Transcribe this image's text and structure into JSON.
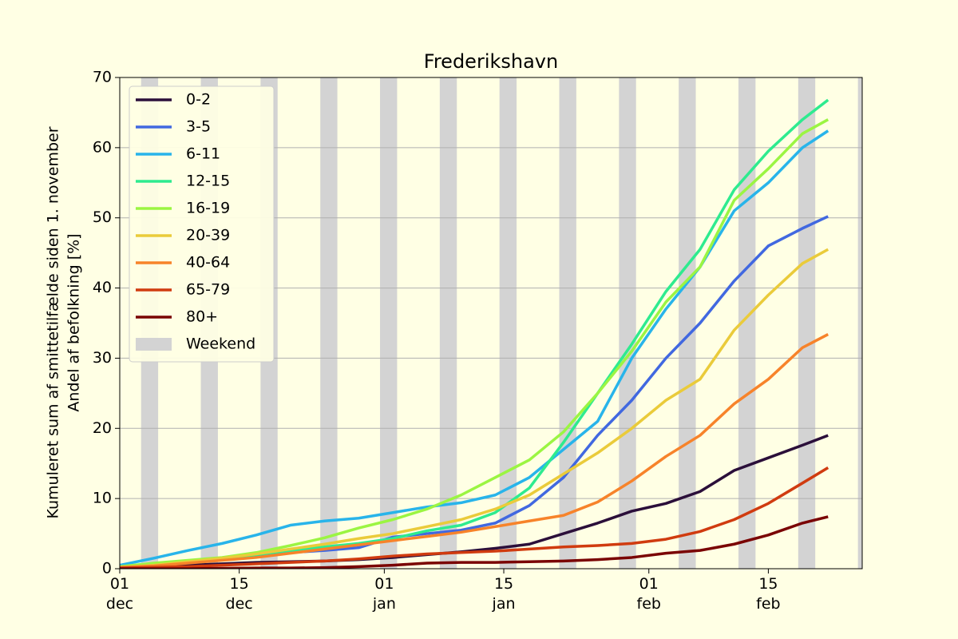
{
  "chart_data": {
    "type": "line",
    "title": "Frederikshavn",
    "ylabel": [
      "Kumuleret sum af smittetilfælde siden 1. november",
      "Andel af befolkning [%]"
    ],
    "x": [
      "12-01",
      "12-05",
      "12-09",
      "12-13",
      "12-17",
      "12-21",
      "12-25",
      "12-29",
      "01-02",
      "01-06",
      "01-10",
      "01-14",
      "01-18",
      "01-22",
      "01-26",
      "01-30",
      "02-03",
      "02-07",
      "02-11",
      "02-15",
      "02-19",
      "02-22"
    ],
    "series": [
      {
        "name": "0-2",
        "color": "#2b0f3a",
        "values": [
          0.1,
          0.3,
          0.5,
          0.7,
          0.9,
          1,
          1.1,
          1.3,
          1.6,
          2,
          2.4,
          2.9,
          3.5,
          5,
          6.5,
          8.2,
          9.3,
          11,
          14,
          15.8,
          17.6,
          19
        ]
      },
      {
        "name": "3-5",
        "color": "#4168e0",
        "values": [
          0.3,
          0.6,
          0.9,
          1.3,
          1.8,
          2.3,
          2.6,
          3,
          4.5,
          5,
          5.5,
          6.5,
          9,
          13,
          19,
          24,
          30,
          35,
          41,
          46,
          48.5,
          50.2
        ]
      },
      {
        "name": "6-11",
        "color": "#28b4ea",
        "values": [
          0.5,
          1.5,
          2.6,
          3.6,
          4.8,
          6.2,
          6.8,
          7.2,
          8,
          8.8,
          9.4,
          10.5,
          13,
          17,
          21,
          30,
          37,
          43,
          51,
          55,
          60,
          62.4
        ]
      },
      {
        "name": "12-15",
        "color": "#2eeb8f",
        "values": [
          0.3,
          0.6,
          1,
          1.3,
          2,
          2.6,
          3.1,
          3.6,
          4.3,
          5.4,
          6.2,
          8,
          11.5,
          18,
          25,
          32,
          39.5,
          45.5,
          54,
          59.5,
          64,
          66.8
        ]
      },
      {
        "name": "16-19",
        "color": "#9bf542",
        "values": [
          0.3,
          0.8,
          1.2,
          1.6,
          2.3,
          3.3,
          4.4,
          5.8,
          7,
          8.5,
          10.5,
          13,
          15.5,
          19.5,
          25,
          31,
          38,
          43,
          52.5,
          57,
          62,
          64
        ]
      },
      {
        "name": "20-39",
        "color": "#eacb3a",
        "values": [
          0.2,
          0.5,
          1,
          1.5,
          2.1,
          2.8,
          3.5,
          4.3,
          5,
          6,
          7,
          8.5,
          10.5,
          13.5,
          16.5,
          20,
          24,
          27,
          34,
          39,
          43.5,
          45.5
        ]
      },
      {
        "name": "40-64",
        "color": "#f7832a",
        "values": [
          0.2,
          0.4,
          0.8,
          1.2,
          1.6,
          2.2,
          2.8,
          3.4,
          4,
          4.6,
          5.2,
          6,
          6.8,
          7.6,
          9.5,
          12.5,
          16,
          19,
          23.5,
          27,
          31.5,
          33.4
        ]
      },
      {
        "name": "65-79",
        "color": "#d03b0f",
        "values": [
          0.1,
          0.2,
          0.3,
          0.5,
          0.7,
          0.9,
          1.1,
          1.4,
          1.8,
          2.1,
          2.3,
          2.5,
          2.8,
          3.1,
          3.3,
          3.6,
          4.2,
          5.3,
          7,
          9.3,
          12.2,
          14.4
        ]
      },
      {
        "name": "80+",
        "color": "#7a0403",
        "values": [
          0,
          0,
          0,
          0.05,
          0.1,
          0.1,
          0.15,
          0.3,
          0.5,
          0.8,
          0.9,
          0.9,
          1,
          1.1,
          1.3,
          1.6,
          2.2,
          2.6,
          3.5,
          4.8,
          6.5,
          7.4
        ]
      }
    ],
    "weekend_label": "Weekend",
    "weekend_color": "#d3d3d3",
    "weekends": [
      [
        "12-04",
        "12-05"
      ],
      [
        "12-11",
        "12-12"
      ],
      [
        "12-18",
        "12-19"
      ],
      [
        "12-25",
        "12-26"
      ],
      [
        "01-01",
        "01-02"
      ],
      [
        "01-08",
        "01-09"
      ],
      [
        "01-15",
        "01-16"
      ],
      [
        "01-22",
        "01-23"
      ],
      [
        "01-29",
        "01-30"
      ],
      [
        "02-05",
        "02-06"
      ],
      [
        "02-12",
        "02-13"
      ],
      [
        "02-19",
        "02-20"
      ],
      [
        "02-26",
        "02-27"
      ]
    ],
    "xlim": [
      "12-01",
      "02-26"
    ],
    "xticks": [
      {
        "value": "12-01",
        "label": "01\ndec"
      },
      {
        "value": "12-15",
        "label": "15\ndec"
      },
      {
        "value": "01-01",
        "label": "01\njan"
      },
      {
        "value": "01-15",
        "label": "15\njan"
      },
      {
        "value": "02-01",
        "label": "01\nfeb"
      },
      {
        "value": "02-15",
        "label": "15\nfeb"
      }
    ],
    "ylim": [
      0,
      70
    ],
    "yticks": [
      0,
      10,
      20,
      30,
      40,
      50,
      60,
      70
    ],
    "grid": true,
    "legend": "upper left"
  }
}
